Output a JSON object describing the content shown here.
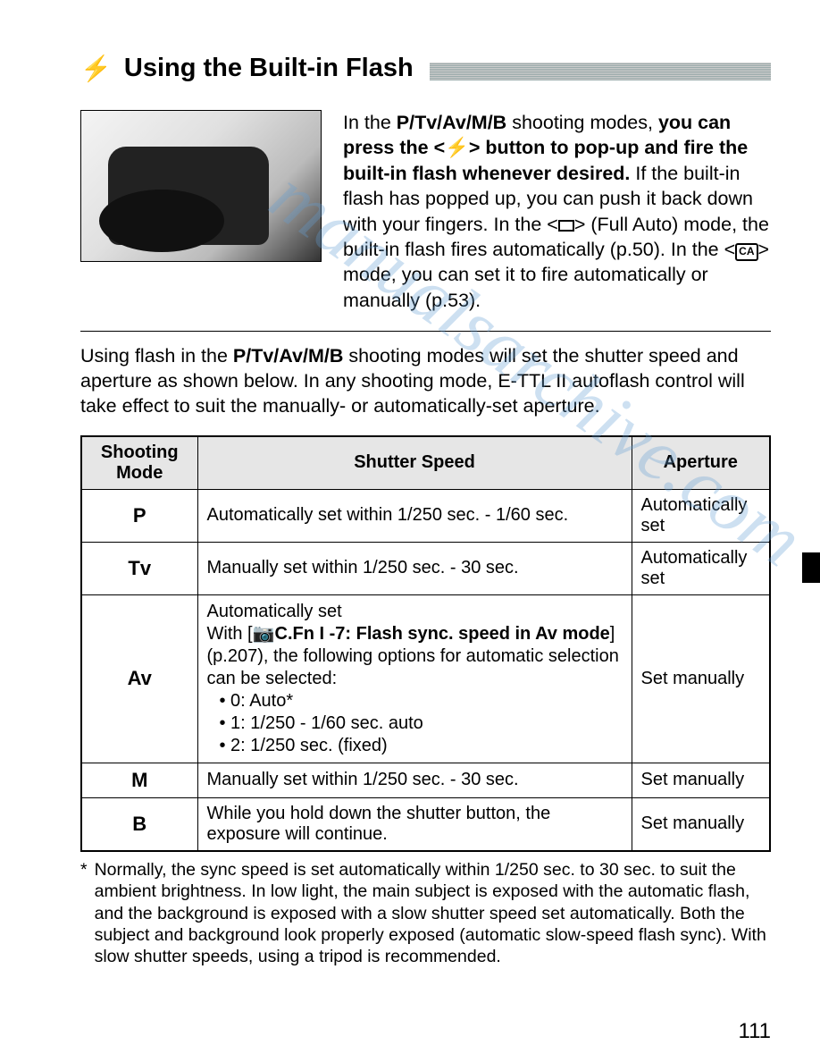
{
  "title": "Using the Built-in Flash",
  "intro": {
    "pre": "In the ",
    "modes_bold": "P/Tv/Av/M/B",
    "post_modes": " shooting modes, ",
    "main_bold": "you can press the <⚡> button to pop-up and fire the built-in flash whenever desired.",
    "rest1": " If the built-in flash has popped up, you can push it back down with your fingers. In the <",
    "rest2": "> (Full Auto) mode, the built-in flash fires automatically (p.50). In the <",
    "rest3": "> mode, you can set it to fire automatically or manually (p.53).",
    "ca_label": "CA"
  },
  "mid": {
    "pre": "Using flash in the ",
    "modes_bold": "P/Tv/Av/M/B",
    "rest": " shooting modes will set the shutter speed and aperture as shown below. In any shooting mode, E-TTL II autoflash control will take effect to suit the manually- or automatically-set aperture."
  },
  "table": {
    "headers": {
      "mode": "Shooting Mode",
      "shutter": "Shutter Speed",
      "aperture": "Aperture"
    },
    "rows": {
      "p": {
        "mode": "P",
        "shutter": "Automatically set within 1/250 sec. - 1/60 sec.",
        "aperture": "Automatically set"
      },
      "tv": {
        "mode": "Tv",
        "shutter": "Manually set within 1/250 sec. - 30 sec.",
        "aperture": "Automatically set"
      },
      "av": {
        "mode": "Av",
        "line1": "Automatically set",
        "line2a": "With [",
        "line2b": "C.Fn I -7: Flash sync. speed in Av mode",
        "line2c": "] (p.207), the following options for automatic selection can be selected:",
        "b1": "• 0: Auto*",
        "b2": "• 1: 1/250 - 1/60 sec. auto",
        "b3": "• 2: 1/250 sec. (fixed)",
        "aperture": "Set manually"
      },
      "m": {
        "mode": "M",
        "shutter": "Manually set within 1/250 sec. - 30 sec.",
        "aperture": "Set manually"
      },
      "b": {
        "mode": "B",
        "shutter": "While you hold down the shutter button, the exposure will continue.",
        "aperture": "Set manually"
      }
    }
  },
  "footnote": {
    "star": "*",
    "text": "Normally, the sync speed is set automatically within 1/250 sec. to 30 sec. to suit the ambient brightness. In low light, the main subject is exposed with the automatic flash, and the background is exposed with a slow shutter speed set automatically. Both the subject and background look properly exposed (automatic slow-speed flash sync). With slow shutter speeds, using a tripod is recommended."
  },
  "page_number": "111",
  "watermark": "manualsarchive.com"
}
